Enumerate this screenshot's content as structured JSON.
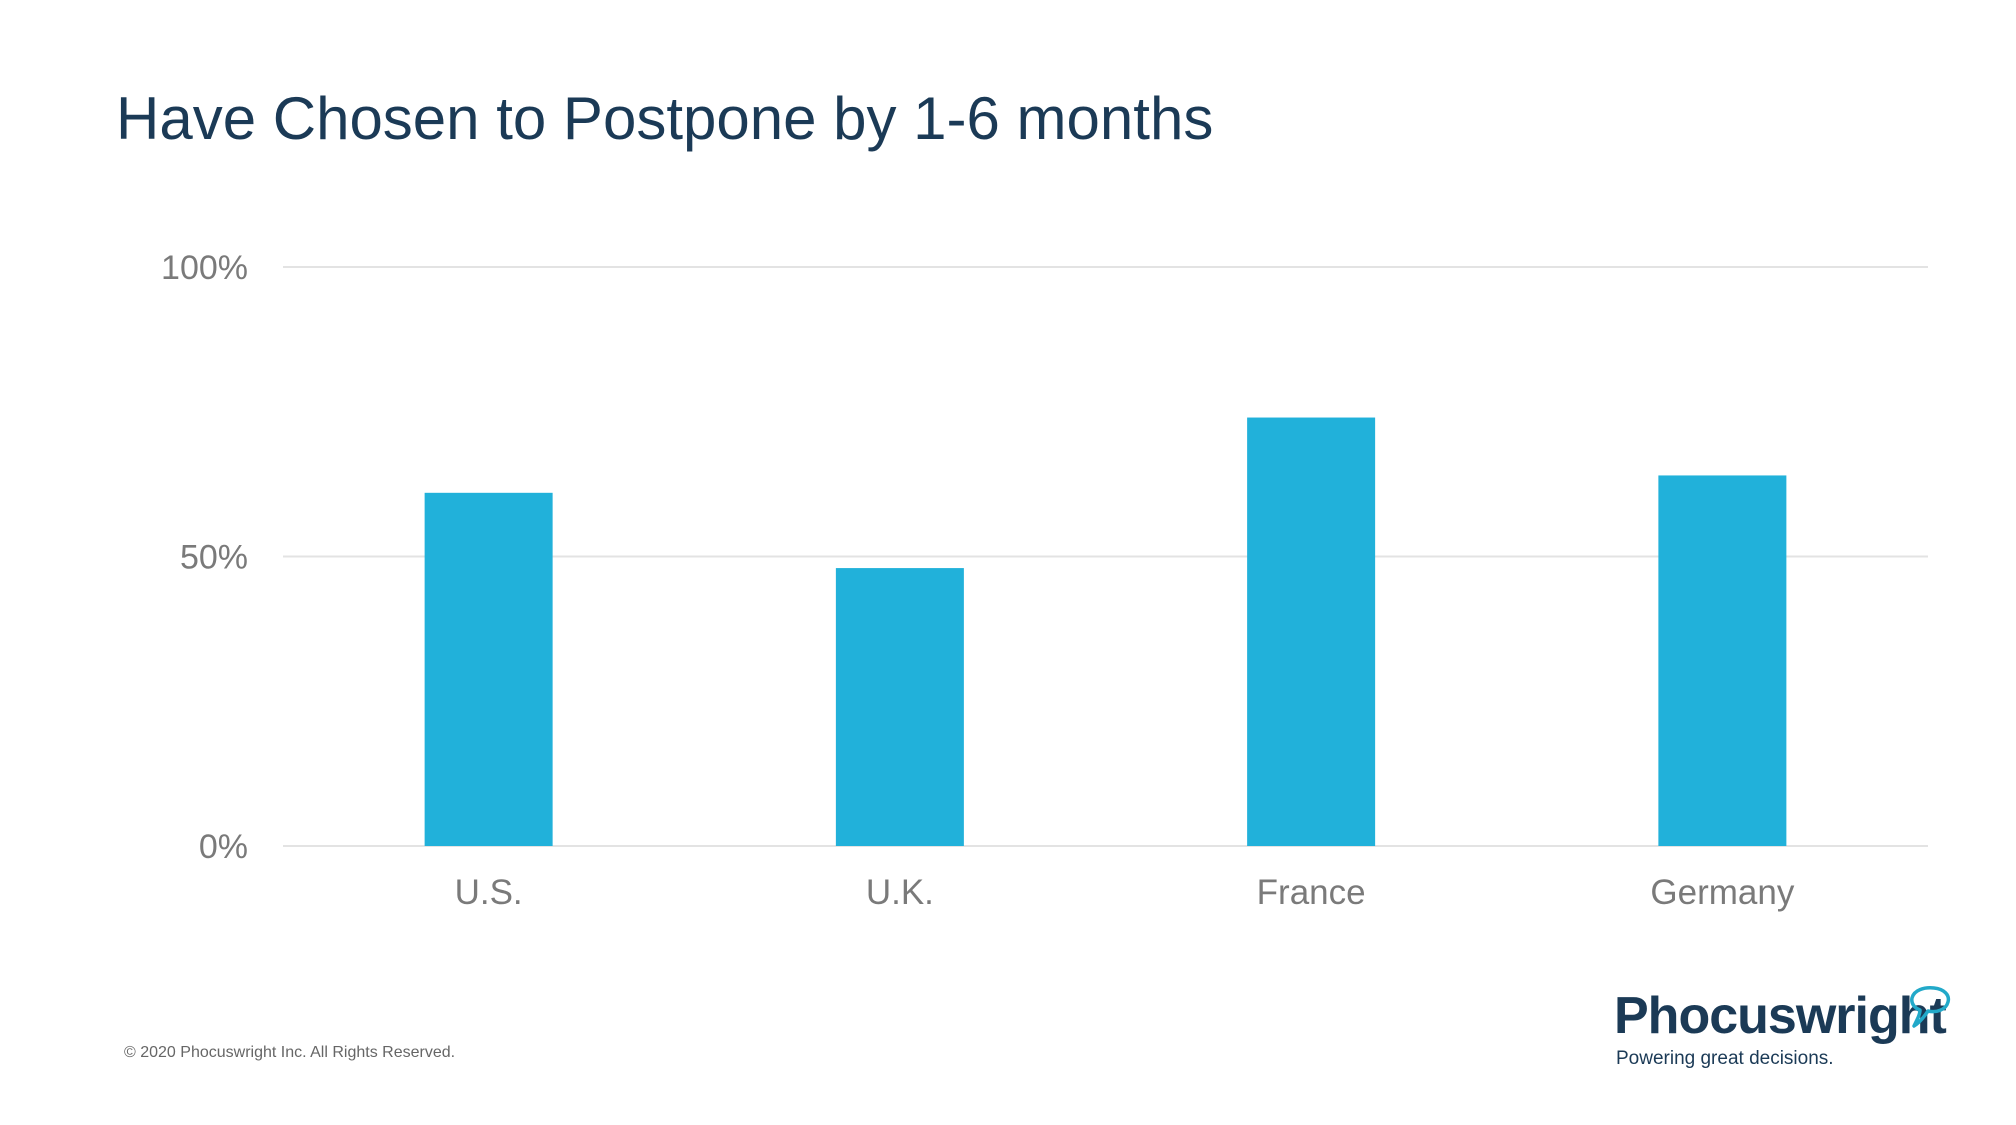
{
  "slide": {
    "title": "Have Chosen to Postpone by 1-6 months",
    "copyright": "© 2020  Phocuswright Inc. All Rights Reserved."
  },
  "logo": {
    "name": "Phocuswright",
    "tagline": "Powering great decisions.",
    "icon": "speech-bubble-icon"
  },
  "colors": {
    "bar": "#21b1da",
    "title": "#1b3a56",
    "gridline": "#e3e3e3",
    "axis_text": "#7a7a7a",
    "logo_accent": "#22a9c9"
  },
  "chart_data": {
    "type": "bar",
    "categories": [
      "U.S.",
      "U.K.",
      "France",
      "Germany"
    ],
    "values": [
      61,
      48,
      74,
      64
    ],
    "unit": "%",
    "ylim": [
      0,
      100
    ],
    "yticks": [
      0,
      50,
      100
    ],
    "ytick_labels": [
      "0%",
      "50%",
      "100%"
    ],
    "grid": true,
    "legend": false
  }
}
